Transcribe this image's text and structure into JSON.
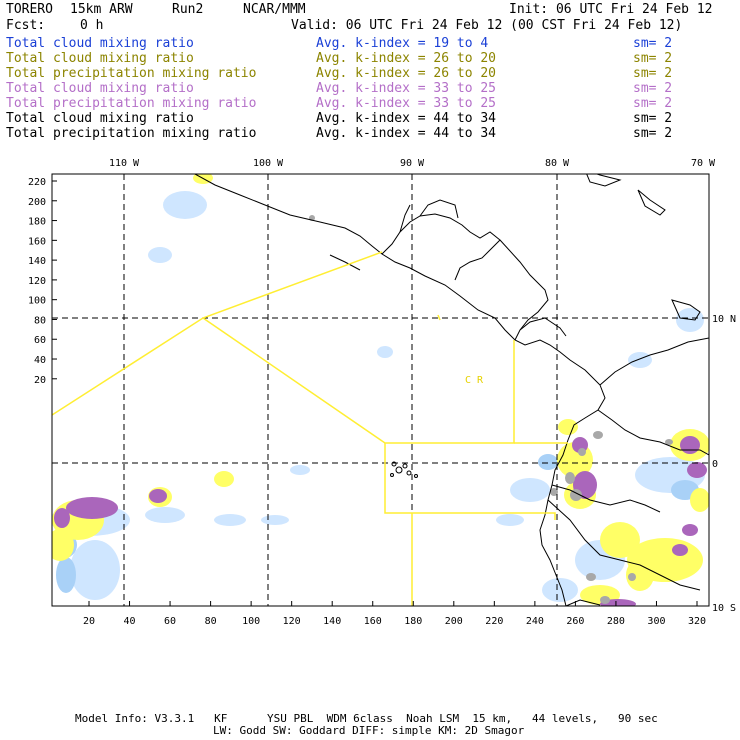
{
  "header": {
    "model": "TORERO",
    "resolution": "15km ARW",
    "run": "Run2",
    "org": "NCAR/MMM",
    "init": "Init: 06 UTC Fri 24 Feb 12",
    "fcst_label": "Fcst:",
    "fcst_value": "0 h",
    "valid": "Valid: 06 UTC Fri 24 Feb 12 (00 CST Fri 24 Feb 12)"
  },
  "legend": [
    {
      "label": "Total cloud mixing ratio",
      "index": "Avg. k-index = 19 to 4",
      "sm": "sm= 2",
      "color": "#1a3fd6"
    },
    {
      "label": "Total cloud mixing ratio",
      "index": "Avg. k-index = 26 to 20",
      "sm": "sm= 2",
      "color": "#8c8400"
    },
    {
      "label": "Total precipitation mixing ratio",
      "index": "Avg. k-index = 26 to 20",
      "sm": "sm= 2",
      "color": "#8c8400"
    },
    {
      "label": "Total cloud mixing ratio",
      "index": "Avg. k-index = 33 to 25",
      "sm": "sm= 2",
      "color": "#b46fc8"
    },
    {
      "label": "Total precipitation mixing ratio",
      "index": "Avg. k-index = 33 to 25",
      "sm": "sm= 2",
      "color": "#b46fc8"
    },
    {
      "label": "Total cloud mixing ratio",
      "index": "Avg. k-index = 44 to 34",
      "sm": "sm= 2",
      "color": "#000000"
    },
    {
      "label": "Total precipitation mixing ratio",
      "index": "Avg. k-index = 44 to 34",
      "sm": "sm= 2",
      "color": "#000000"
    }
  ],
  "map": {
    "lon_labels": [
      "110 W",
      "100 W",
      "90 W",
      "80 W",
      "70 W"
    ],
    "lat_labels": [
      "10 N",
      "0",
      "10 S"
    ],
    "y_ticks": [
      "220",
      "200",
      "180",
      "160",
      "140",
      "120",
      "100",
      "80",
      "60",
      "40",
      "20"
    ],
    "x_ticks": [
      "20",
      "40",
      "60",
      "80",
      "100",
      "120",
      "140",
      "160",
      "180",
      "200",
      "220",
      "240",
      "260",
      "280",
      "300",
      "320"
    ],
    "region_label": "C R",
    "colors": {
      "cloud_light": "#cfe6ff",
      "cloud_mid": "#a9d1f7",
      "precip_yellow": "#ffff66",
      "purple": "#aa66bb",
      "gray": "#a8a8a8",
      "boundary": "#ffee33"
    }
  },
  "footer": {
    "line1": "Model Info: V3.3.1   KF      YSU PBL  WDM 6class  Noah LSM  15 km,   44 levels,   90 sec",
    "line2": "LW: Godd SW: Goddard DIFF: simple KM: 2D Smagor"
  }
}
